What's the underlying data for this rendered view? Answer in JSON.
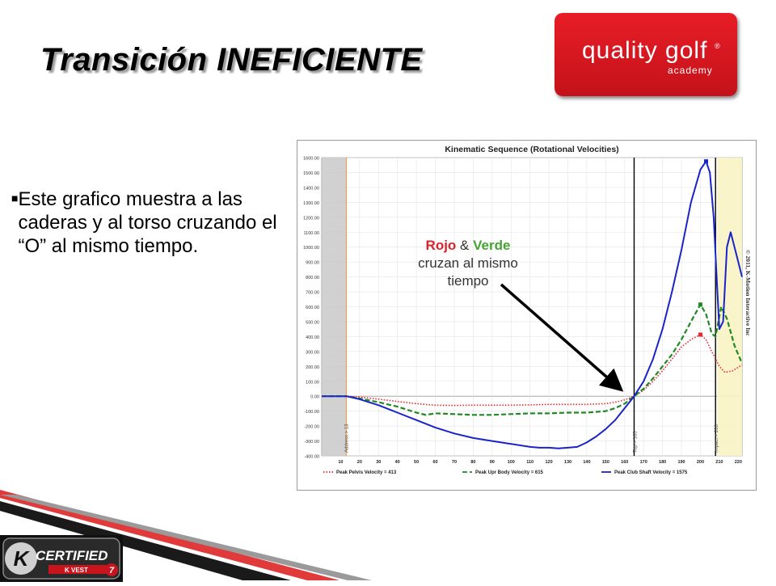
{
  "slide": {
    "title": "Transición INEFICIENTE",
    "bullet": "Este grafico muestra a las caderas y al torso cruzando el  “O” al mismo tiempo.",
    "callout": {
      "red": "Rojo",
      "amp": " & ",
      "green": "Verde",
      "rest": "cruzan al mismo tiempo"
    }
  },
  "logo": {
    "brand": "quality golf",
    "sub": "academy",
    "reg": "®"
  },
  "badge": {
    "main": "CERTIFIED",
    "sub": "K VEST",
    "num": "7"
  },
  "colors": {
    "pelvis": "#e8262b",
    "upper_body": "#1f8a24",
    "club": "#1a24c8",
    "logo_bg": "#d81b23"
  },
  "chart_data": {
    "type": "line",
    "title": "Kinematic Sequence (Rotational Velocities)",
    "copyright": "© 2011, K-Motion Interactive Inc",
    "xlim": [
      0,
      222
    ],
    "ylim": [
      -400,
      1600
    ],
    "y_ticks": [
      "1600.00",
      "1500.00",
      "1400.00",
      "1300.00",
      "1200.00",
      "1100.00",
      "1000.00",
      "900.00",
      "800.00",
      "700.00",
      "600.00",
      "500.00",
      "400.00",
      "300.00",
      "200.00",
      "100.00",
      "0.00",
      "-100.00",
      "-200.00",
      "-300.00",
      "-400.00"
    ],
    "x_ticks": [
      "10",
      "20",
      "30",
      "40",
      "50",
      "60",
      "70",
      "80",
      "90",
      "100",
      "110",
      "120",
      "130",
      "140",
      "150",
      "160",
      "170",
      "180",
      "190",
      "200",
      "210",
      "220"
    ],
    "markers": [
      {
        "label": "Address > 13",
        "x": 13
      },
      {
        "label": "Top > 165",
        "x": 165
      },
      {
        "label": "Impact > 208",
        "x": 208
      }
    ],
    "series": [
      {
        "name": "Peak Pelvis Velocity = 413",
        "style": "dotted",
        "x": [
          0,
          13,
          20,
          30,
          40,
          50,
          60,
          70,
          80,
          90,
          100,
          110,
          120,
          130,
          140,
          150,
          155,
          160,
          165,
          170,
          175,
          180,
          185,
          190,
          195,
          200,
          203,
          206,
          208,
          210,
          213,
          217,
          222
        ],
        "y": [
          0,
          0,
          -5,
          -20,
          -35,
          -50,
          -60,
          -62,
          -60,
          -60,
          -60,
          -58,
          -55,
          -55,
          -55,
          -50,
          -40,
          -25,
          0,
          40,
          100,
          170,
          250,
          330,
          380,
          413,
          380,
          300,
          250,
          200,
          160,
          170,
          210
        ]
      },
      {
        "name": "Peak Upr Body Velocity = 615",
        "style": "dashed",
        "x": [
          0,
          13,
          20,
          30,
          40,
          50,
          55,
          60,
          70,
          80,
          90,
          100,
          110,
          120,
          130,
          140,
          150,
          155,
          160,
          165,
          170,
          175,
          180,
          185,
          190,
          195,
          200,
          203,
          206,
          208,
          211,
          214,
          218,
          222
        ],
        "y": [
          0,
          0,
          -15,
          -40,
          -70,
          -110,
          -125,
          -115,
          -120,
          -125,
          -125,
          -120,
          -115,
          -115,
          -110,
          -110,
          -100,
          -80,
          -50,
          0,
          50,
          120,
          200,
          280,
          380,
          500,
          615,
          550,
          420,
          400,
          600,
          520,
          340,
          220
        ]
      },
      {
        "name": "Peak Club Shaft Velocity = 1575",
        "style": "solid",
        "x": [
          0,
          13,
          20,
          30,
          40,
          50,
          60,
          70,
          80,
          90,
          100,
          110,
          115,
          120,
          125,
          130,
          135,
          140,
          145,
          150,
          155,
          160,
          165,
          170,
          175,
          180,
          185,
          190,
          195,
          200,
          203,
          205,
          207,
          209,
          210,
          212,
          214,
          216,
          219,
          222
        ],
        "y": [
          0,
          0,
          -20,
          -60,
          -110,
          -160,
          -210,
          -250,
          -280,
          -300,
          -320,
          -340,
          -345,
          -345,
          -350,
          -345,
          -340,
          -310,
          -270,
          -220,
          -160,
          -80,
          0,
          100,
          250,
          450,
          700,
          980,
          1300,
          1520,
          1575,
          1500,
          1200,
          700,
          450,
          500,
          1000,
          1100,
          950,
          800
        ]
      }
    ]
  }
}
